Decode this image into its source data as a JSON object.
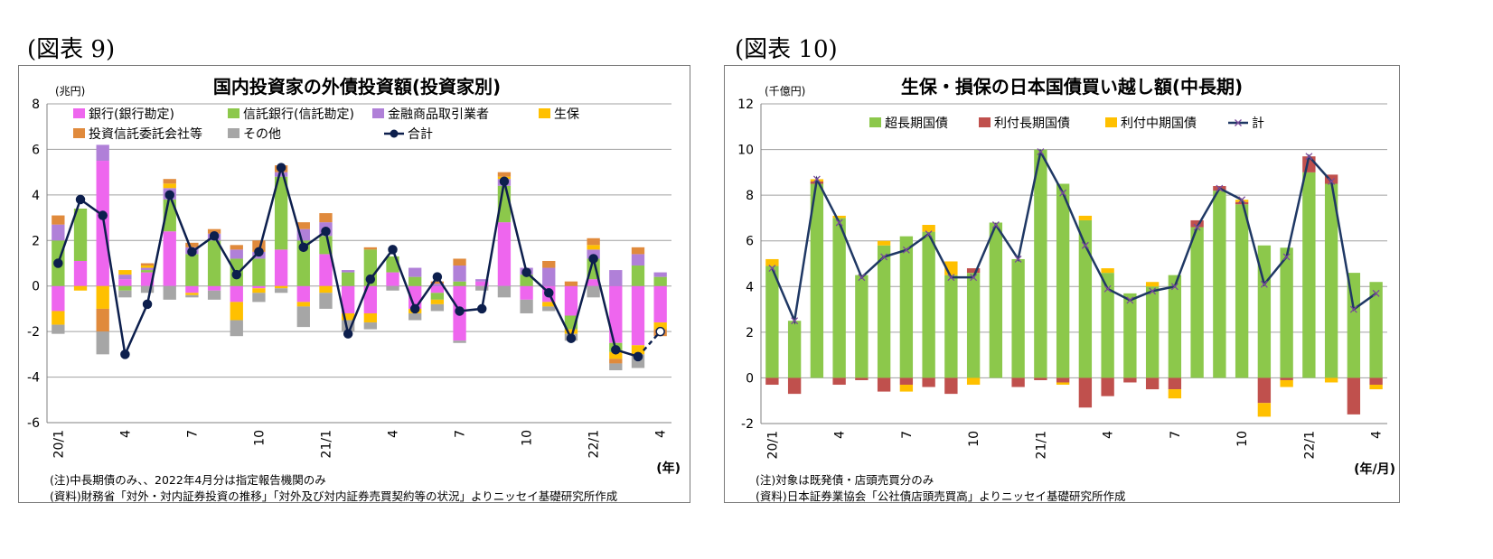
{
  "figures": [
    {
      "label": "(図表 9)"
    },
    {
      "label": "(図表 10)"
    }
  ],
  "chart_data": [
    {
      "type": "bar",
      "stacked": true,
      "title": "国内投資家の外債投資額(投資家別)",
      "unit": "(兆円)",
      "xlabel": "(年)",
      "ylim": [
        -6,
        8
      ],
      "yticks": [
        "8",
        "6",
        "4",
        "2",
        "0",
        "-2",
        "-4",
        "-6"
      ],
      "grid": true,
      "legend_position": "top-left",
      "categories": [
        "20/1",
        "",
        "",
        "4",
        "",
        "",
        "7",
        "",
        "",
        "10",
        "",
        "",
        "21/1",
        "",
        "",
        "4",
        "",
        "",
        "7",
        "",
        "",
        "10",
        "",
        "",
        "22/1",
        "",
        "",
        "4"
      ],
      "series": [
        {
          "name": "銀行(銀行勘定)",
          "color": "#ee66ee",
          "values": [
            -1.1,
            1.1,
            5.5,
            0.3,
            0.6,
            2.4,
            -0.3,
            -0.2,
            -0.7,
            -0.1,
            1.6,
            -0.7,
            1.4,
            -1.2,
            -1.2,
            0.6,
            -1.0,
            -0.3,
            -2.4,
            0.2,
            2.8,
            -0.6,
            -0.7,
            -1.3,
            0.3,
            -2.5,
            -2.6,
            -1.6
          ]
        },
        {
          "name": "信託銀行(信託勘定)",
          "color": "#8cc84b",
          "values": [
            2.0,
            2.3,
            0,
            -0.2,
            0.1,
            1.4,
            1.4,
            2.0,
            1.2,
            1.2,
            3.2,
            2.0,
            0.8,
            0.6,
            1.6,
            0.7,
            0.4,
            -0.3,
            0.2,
            0,
            1.6,
            0.5,
            0,
            -0.6,
            0.9,
            -0.4,
            0.9,
            0.4
          ]
        },
        {
          "name": "金融商品取引業者",
          "color": "#b080d8",
          "values": [
            0.7,
            0,
            0.7,
            0.2,
            0.1,
            0.5,
            0.3,
            0.3,
            0.4,
            0.3,
            0.2,
            0.5,
            0.6,
            0.1,
            0,
            0,
            0.4,
            0.1,
            0.7,
            0.1,
            0.3,
            0.3,
            0.8,
            0,
            0.4,
            0.7,
            0.5,
            0.2
          ]
        },
        {
          "name": "生保",
          "color": "#ffc000",
          "values": [
            -0.6,
            -0.2,
            -1.0,
            0.2,
            0.1,
            0.2,
            -0.1,
            0,
            -0.8,
            -0.2,
            -0.1,
            -0.2,
            -0.3,
            -0.3,
            -0.4,
            0,
            -0.2,
            -0.2,
            0,
            0,
            0.1,
            0,
            -0.2,
            -0.2,
            0.2,
            -0.3,
            -0.4,
            -0.3
          ]
        },
        {
          "name": "投資信託委託会社等",
          "color": "#e08a3c",
          "values": [
            0.4,
            0,
            -1.0,
            0,
            0.1,
            0.2,
            0.2,
            0.2,
            0.2,
            0.5,
            0.3,
            0.3,
            0.4,
            0,
            0.1,
            0,
            0,
            0.1,
            0.3,
            0,
            0.2,
            0,
            0.3,
            0.2,
            0.3,
            -0.2,
            0.3,
            -0.3
          ]
        },
        {
          "name": "その他",
          "color": "#a6a6a6",
          "values": [
            -0.4,
            0,
            -1.0,
            -0.3,
            -0.3,
            -0.6,
            -0.1,
            -0.4,
            -0.7,
            -0.4,
            -0.2,
            -0.9,
            -0.7,
            -0.5,
            -0.3,
            -0.2,
            -0.3,
            -0.3,
            -0.1,
            -0.2,
            -0.5,
            -0.6,
            -0.2,
            -0.3,
            -0.5,
            -0.3,
            -0.6,
            0
          ]
        },
        {
          "name": "合計",
          "type": "line",
          "color": "#0d1f4d",
          "values": [
            1.0,
            3.8,
            3.1,
            -3.0,
            -0.8,
            4.0,
            1.5,
            2.2,
            0.5,
            1.5,
            5.2,
            1.7,
            2.4,
            -2.1,
            0.3,
            1.6,
            -1.0,
            0.4,
            -1.1,
            -1.0,
            4.6,
            0.6,
            -0.3,
            -2.3,
            1.2,
            -2.8,
            -3.1,
            -2.0
          ]
        }
      ]
    },
    {
      "type": "bar",
      "stacked": true,
      "title": "生保・損保の日本国債買い越し額(中長期)",
      "unit": "(千億円)",
      "xlabel": "(年/月)",
      "ylim": [
        -2,
        12
      ],
      "yticks": [
        "12",
        "10",
        "8",
        "6",
        "4",
        "2",
        "0",
        "-2"
      ],
      "grid": true,
      "legend_position": "top",
      "categories": [
        "20/1",
        "",
        "",
        "4",
        "",
        "",
        "7",
        "",
        "",
        "10",
        "",
        "",
        "21/1",
        "",
        "",
        "4",
        "",
        "",
        "7",
        "",
        "",
        "10",
        "",
        "",
        "22/1",
        "",
        "",
        "4"
      ],
      "series": [
        {
          "name": "超長期国債",
          "color": "#8cc84b",
          "values": [
            4.9,
            2.5,
            8.5,
            7.0,
            4.5,
            5.8,
            6.2,
            6.4,
            4.5,
            4.6,
            6.8,
            5.2,
            10.0,
            8.5,
            6.9,
            4.6,
            3.7,
            4.0,
            4.5,
            6.6,
            8.2,
            7.6,
            5.8,
            5.7,
            9.0,
            8.5,
            4.6,
            4.2
          ]
        },
        {
          "name": "利付長期国債",
          "color": "#c0504d",
          "values": [
            -0.3,
            -0.7,
            0.1,
            -0.3,
            -0.1,
            -0.6,
            -0.3,
            -0.4,
            -0.7,
            0.2,
            0,
            -0.4,
            -0.1,
            -0.2,
            -1.3,
            -0.8,
            -0.2,
            -0.5,
            -0.5,
            0.3,
            0.2,
            0.1,
            -1.1,
            -0.1,
            0.7,
            0.4,
            -1.6,
            -0.3
          ]
        },
        {
          "name": "利付中期国債",
          "color": "#ffc000",
          "values": [
            0.3,
            0,
            0.1,
            0.1,
            0,
            0.2,
            -0.3,
            0.3,
            0.6,
            -0.3,
            0,
            0,
            0,
            -0.1,
            0.2,
            0.2,
            0,
            0.2,
            -0.4,
            0,
            0,
            0.1,
            -0.6,
            -0.3,
            0,
            -0.2,
            0,
            -0.2
          ]
        },
        {
          "name": "計",
          "type": "line",
          "color": "#1f3864",
          "values": [
            4.8,
            2.5,
            8.7,
            6.8,
            4.4,
            5.3,
            5.6,
            6.3,
            4.4,
            4.4,
            6.7,
            5.2,
            9.9,
            8.1,
            5.8,
            3.9,
            3.4,
            3.8,
            4.0,
            6.6,
            8.3,
            7.8,
            4.1,
            5.3,
            9.7,
            8.6,
            3.0,
            3.7
          ]
        }
      ]
    }
  ],
  "notes": [
    {
      "note": "(注)中長期債のみ、、2022年4月分は指定報告機関のみ",
      "source": "(資料)財務省「対外・対内証券投資の推移」「対外及び対内証券売買契約等の状況」よりニッセイ基礎研究所作成"
    },
    {
      "note": "(注)対象は既発債・店頭売買分のみ",
      "source": "(資料)日本証券業協会「公社債店頭売買高」よりニッセイ基礎研究所作成"
    }
  ]
}
